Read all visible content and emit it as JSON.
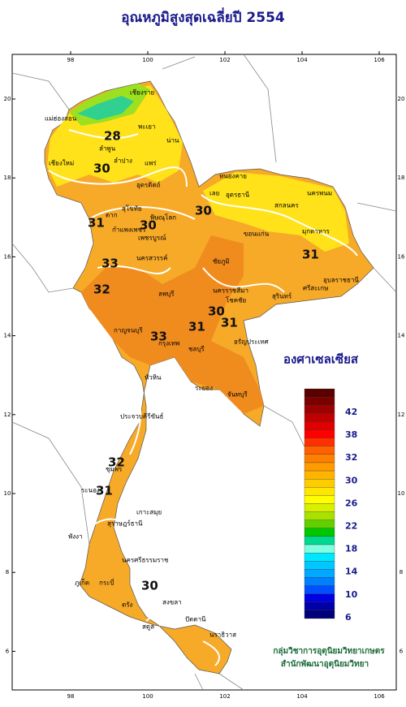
{
  "title": "อุณหภูมิสูงสุดเฉลี่ยปี  2554",
  "map": {
    "lon_ticks": [
      98,
      100,
      102,
      104,
      106
    ],
    "lat_ticks": [
      20,
      18,
      16,
      14,
      12,
      10,
      8,
      6
    ],
    "provinces": [
      "เชียงราย",
      "แม่ฮ่องสอน",
      "เชียงใหม่",
      "พะเยา",
      "ลำพูน",
      "น่าน",
      "แพร่",
      "ลำปาง",
      "อุตรดิตถ์",
      "ตาก",
      "สุโขทัย",
      "พิษณุโลก",
      "กำแพงเพชร",
      "นครสวรรค์",
      "หนองคาย",
      "เลย",
      "อุดรธานี",
      "สกลนคร",
      "นครพนม",
      "ขอนแก่น",
      "มุกดาหาร",
      "ชัยภูมิ",
      "อุบลราชธานี",
      "นครราชสีมา",
      "สุรินทร์",
      "ศรีสะเกษ",
      "ลพบุรี",
      "กาญจนบุรี",
      "กรุงเทพ",
      "ชลบุรี",
      "ระยอง",
      "จันทบุรี",
      "โชคชัย",
      "อรัญประเทศ",
      "ประจวบคีรีขันธ์",
      "ชุมพร",
      "ระนอง",
      "สุราษฎร์ธานี",
      "เกาะสมุย",
      "พังงา",
      "ภูเก็ต",
      "กระบี่",
      "นครศรีธรรมราช",
      "ตรัง",
      "สงขลา",
      "ปัตตานี",
      "นราธิวาส",
      "สตูล",
      "หัวหิน",
      "เพชรบูรณ์"
    ],
    "contour_labels": [
      "28",
      "30",
      "31",
      "30",
      "30",
      "33",
      "32",
      "31",
      "30",
      "31",
      "33",
      "31",
      "32",
      "31",
      "30"
    ]
  },
  "legend": {
    "title": "องศาเซลเซียส",
    "labels": [
      "42",
      "38",
      "32",
      "30",
      "26",
      "22",
      "18",
      "14",
      "10",
      "6"
    ]
  },
  "footer": [
    "กลุ่มวิชาการอุตุนิยมวิทยาเกษตร",
    "สำนักพัฒนาอุตุนิยมวิทยา"
  ]
}
